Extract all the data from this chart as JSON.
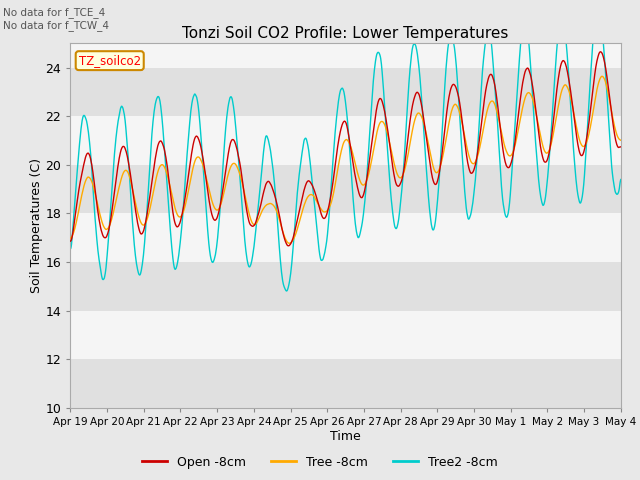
{
  "title": "Tonzi Soil CO2 Profile: Lower Temperatures",
  "xlabel": "Time",
  "ylabel": "Soil Temperatures (C)",
  "ylim": [
    10,
    25
  ],
  "yticks": [
    10,
    12,
    14,
    16,
    18,
    20,
    22,
    24
  ],
  "annotations": [
    "No data for f_TCE_4",
    "No data for f_TCW_4"
  ],
  "watermark": "TZ_soilco2",
  "legend_labels": [
    "Open -8cm",
    "Tree -8cm",
    "Tree2 -8cm"
  ],
  "line_colors": [
    "#cc0000",
    "#ffaa00",
    "#00cccc"
  ],
  "fig_bg_color": "#e8e8e8",
  "plot_bg_color": "#f5f5f5",
  "band_white": "#f5f5f5",
  "band_gray": "#e0e0e0",
  "xtick_labels": [
    "Apr 19",
    "Apr 20",
    "Apr 21",
    "Apr 22",
    "Apr 23",
    "Apr 24",
    "Apr 25",
    "Apr 26",
    "Apr 27",
    "Apr 28",
    "Apr 29",
    "Apr 30",
    "May 1",
    "May 2",
    "May 3",
    "May 4"
  ]
}
